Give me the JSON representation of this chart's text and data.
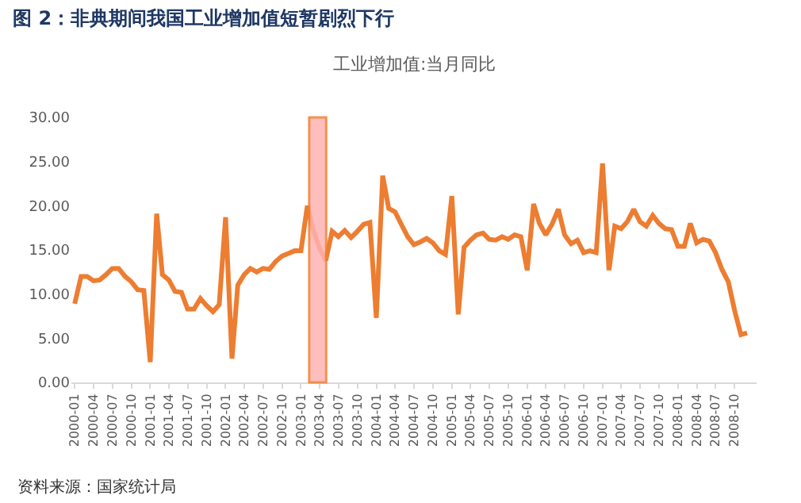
{
  "chart_data": {
    "type": "line",
    "title": "图 2：非典期间我国工业增加值短暂剧烈下行",
    "subtitle": "工业增加值:当月同比",
    "annotations": [
      "资料来源：国家统计局"
    ],
    "x": [
      "2000-01",
      "2000-02",
      "2000-03",
      "2000-04",
      "2000-05",
      "2000-06",
      "2000-07",
      "2000-08",
      "2000-09",
      "2000-10",
      "2000-11",
      "2000-12",
      "2001-01",
      "2001-02",
      "2001-03",
      "2001-04",
      "2001-05",
      "2001-06",
      "2001-07",
      "2001-08",
      "2001-09",
      "2001-10",
      "2001-11",
      "2001-12",
      "2002-01",
      "2002-02",
      "2002-03",
      "2002-04",
      "2002-05",
      "2002-06",
      "2002-07",
      "2002-08",
      "2002-09",
      "2002-10",
      "2002-11",
      "2002-12",
      "2003-01",
      "2003-02",
      "2003-03",
      "2003-04",
      "2003-05",
      "2003-06",
      "2003-07",
      "2003-08",
      "2003-09",
      "2003-10",
      "2003-11",
      "2003-12",
      "2004-01",
      "2004-02",
      "2004-03",
      "2004-04",
      "2004-05",
      "2004-06",
      "2004-07",
      "2004-08",
      "2004-09",
      "2004-10",
      "2004-11",
      "2004-12",
      "2005-01",
      "2005-02",
      "2005-03",
      "2005-04",
      "2005-05",
      "2005-06",
      "2005-07",
      "2005-08",
      "2005-09",
      "2005-10",
      "2005-11",
      "2005-12",
      "2006-01",
      "2006-02",
      "2006-03",
      "2006-04",
      "2006-05",
      "2006-06",
      "2006-07",
      "2006-08",
      "2006-09",
      "2006-10",
      "2006-11",
      "2006-12",
      "2007-01",
      "2007-02",
      "2007-03",
      "2007-04",
      "2007-05",
      "2007-06",
      "2007-07",
      "2007-08",
      "2007-09",
      "2007-10",
      "2007-11",
      "2007-12",
      "2008-01",
      "2008-02",
      "2008-03",
      "2008-04",
      "2008-05",
      "2008-06",
      "2008-07",
      "2008-08",
      "2008-09",
      "2008-10",
      "2008-11",
      "2008-12"
    ],
    "series": [
      {
        "color": "#ed7d31",
        "values": [
          8.9,
          12.0,
          12.0,
          11.5,
          11.6,
          12.2,
          12.9,
          12.9,
          12.0,
          11.4,
          10.5,
          10.4,
          2.3,
          19.1,
          12.2,
          11.6,
          10.3,
          10.2,
          8.3,
          8.3,
          9.5,
          8.7,
          8.0,
          8.8,
          18.7,
          2.7,
          11.0,
          12.2,
          12.9,
          12.5,
          12.9,
          12.8,
          13.7,
          14.3,
          14.6,
          14.9,
          14.9,
          20.0,
          17.3,
          15.2,
          13.8,
          17.1,
          16.5,
          17.2,
          16.4,
          17.1,
          17.9,
          18.1,
          7.3,
          23.4,
          19.7,
          19.3,
          17.9,
          16.5,
          15.6,
          15.9,
          16.3,
          15.8,
          14.9,
          14.5,
          21.1,
          7.7,
          15.3,
          16.1,
          16.7,
          16.9,
          16.2,
          16.1,
          16.5,
          16.2,
          16.7,
          16.5,
          12.7,
          20.2,
          18.0,
          16.7,
          17.9,
          19.6,
          16.7,
          15.7,
          16.1,
          14.7,
          14.9,
          14.7,
          24.8,
          12.7,
          17.7,
          17.4,
          18.2,
          19.6,
          18.2,
          17.7,
          18.9,
          18.0,
          17.4,
          17.3,
          15.4,
          15.4,
          18.0,
          15.8,
          16.2,
          16.0,
          14.7,
          12.8,
          11.4,
          8.2,
          5.4,
          5.6
        ]
      }
    ],
    "xlim": [
      "1999-12-16",
      "2009-01-16"
    ],
    "xticks": [
      "2000-01",
      "2000-04",
      "2000-07",
      "2000-10",
      "2001-01",
      "2001-04",
      "2001-07",
      "2001-10",
      "2002-01",
      "2002-04",
      "2002-07",
      "2002-10",
      "2003-01",
      "2003-04",
      "2003-07",
      "2003-10",
      "2004-01",
      "2004-04",
      "2004-07",
      "2004-10",
      "2005-01",
      "2005-04",
      "2005-07",
      "2005-10",
      "2006-01",
      "2006-04",
      "2006-07",
      "2006-10",
      "2007-01",
      "2007-04",
      "2007-07",
      "2007-10",
      "2008-01",
      "2008-04",
      "2008-07",
      "2008-10"
    ],
    "ylim": [
      0,
      30
    ],
    "yticks": [
      {
        "value": 0,
        "label": "0.00"
      },
      {
        "value": 5,
        "label": "5.00"
      },
      {
        "value": 10,
        "label": "10.00"
      },
      {
        "value": 15,
        "label": "15.00"
      },
      {
        "value": 20,
        "label": "20.00"
      },
      {
        "value": 25,
        "label": "25.00"
      },
      {
        "value": 30,
        "label": "30.00"
      }
    ],
    "bands": [
      {
        "axis": "x",
        "from": "2003-02-10",
        "to": "2003-05-03",
        "color": "#ffb3b3"
      }
    ],
    "line_style": "solid"
  }
}
